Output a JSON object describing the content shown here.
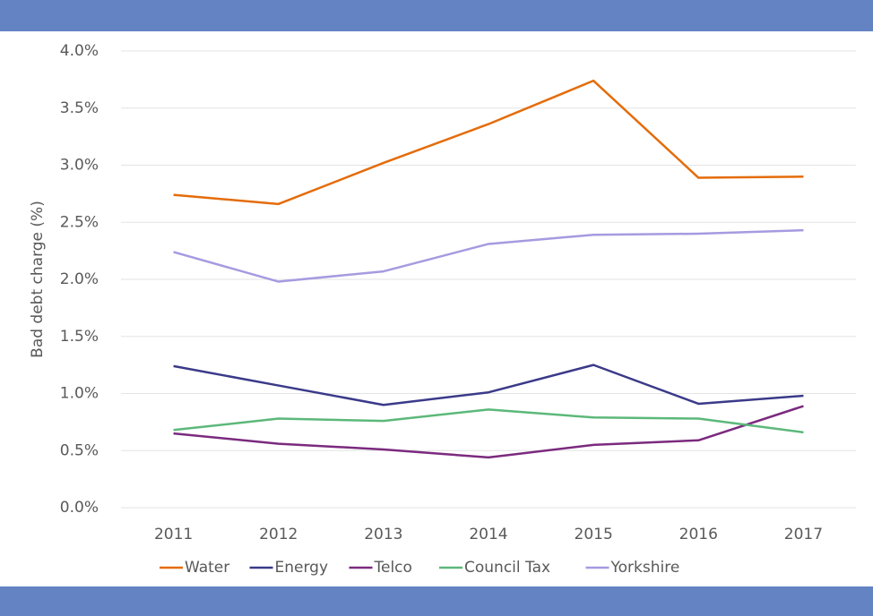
{
  "chart_data": {
    "type": "line",
    "ylabel": "Bad debt charge (%)",
    "x": [
      "2011",
      "2012",
      "2013",
      "2014",
      "2015",
      "2016",
      "2017"
    ],
    "series": [
      {
        "name": "Water",
        "color": "#e46c0a",
        "values": [
          2.74,
          2.66,
          3.02,
          3.36,
          3.74,
          2.89,
          2.9
        ]
      },
      {
        "name": "Energy",
        "color": "#3b3a8a",
        "values": [
          1.24,
          1.07,
          0.9,
          1.01,
          1.25,
          0.91,
          0.98
        ]
      },
      {
        "name": "Telco",
        "color": "#7b2a7e",
        "values": [
          0.65,
          0.56,
          0.51,
          0.44,
          0.55,
          0.59,
          0.89
        ]
      },
      {
        "name": "Council Tax",
        "color": "#5cb87a",
        "values": [
          0.68,
          0.78,
          0.76,
          0.86,
          0.79,
          0.78,
          0.66
        ]
      },
      {
        "name": "Yorkshire",
        "color": "#a59be0",
        "values": [
          2.24,
          1.98,
          2.07,
          2.31,
          2.39,
          2.4,
          2.43
        ]
      }
    ],
    "ylim": [
      0,
      4
    ],
    "yticks": [
      {
        "value": 0,
        "label": "0.0%"
      },
      {
        "value": 0.5,
        "label": "0.5%"
      },
      {
        "value": 1,
        "label": "1.0%"
      },
      {
        "value": 1.5,
        "label": "1.5%"
      },
      {
        "value": 2,
        "label": "2.0%"
      },
      {
        "value": 2.5,
        "label": "2.5%"
      },
      {
        "value": 3,
        "label": "3.0%"
      },
      {
        "value": 3.5,
        "label": "3.5%"
      },
      {
        "value": 4,
        "label": "4.0%"
      }
    ],
    "grid": true,
    "legend": "bottom"
  }
}
